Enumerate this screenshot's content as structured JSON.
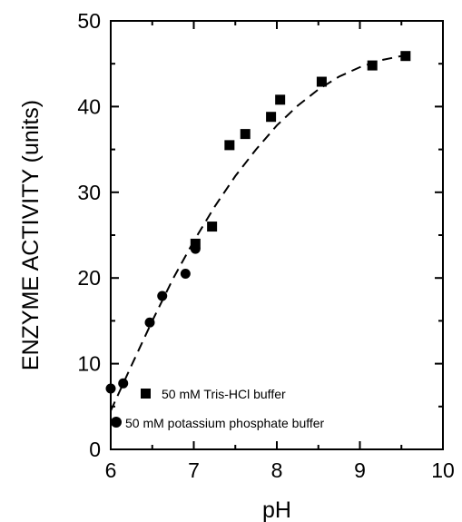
{
  "chart_data": {
    "type": "scatter",
    "xlabel": "pH",
    "ylabel": "ENZYME ACTIVITY (units)",
    "xlim": [
      6,
      10
    ],
    "ylim": [
      0,
      50
    ],
    "xticks": [
      6,
      7,
      8,
      9,
      10
    ],
    "yticks": [
      0,
      10,
      20,
      30,
      40,
      50
    ],
    "grid": false,
    "legend_position": "bottom-left",
    "series": [
      {
        "name": "50 mM Tris-HCl buffer",
        "marker": "square",
        "points": [
          {
            "x": 7.02,
            "y": 24.0
          },
          {
            "x": 7.22,
            "y": 26.0
          },
          {
            "x": 7.43,
            "y": 35.5
          },
          {
            "x": 7.62,
            "y": 36.8
          },
          {
            "x": 7.93,
            "y": 38.8
          },
          {
            "x": 8.04,
            "y": 40.8
          },
          {
            "x": 8.54,
            "y": 42.9
          },
          {
            "x": 9.15,
            "y": 44.8
          },
          {
            "x": 9.55,
            "y": 45.9
          }
        ]
      },
      {
        "name": "50 mM potassium phosphate buffer",
        "marker": "circle",
        "points": [
          {
            "x": 6.0,
            "y": 7.1
          },
          {
            "x": 6.15,
            "y": 7.7
          },
          {
            "x": 6.47,
            "y": 14.8
          },
          {
            "x": 6.62,
            "y": 17.9
          },
          {
            "x": 6.9,
            "y": 20.5
          },
          {
            "x": 7.02,
            "y": 23.4
          }
        ]
      }
    ],
    "fit_curve": {
      "style": "dashed",
      "points": [
        {
          "x": 6.0,
          "y": 4.5
        },
        {
          "x": 6.25,
          "y": 9.8
        },
        {
          "x": 6.5,
          "y": 15.0
        },
        {
          "x": 6.75,
          "y": 19.9
        },
        {
          "x": 7.0,
          "y": 24.3
        },
        {
          "x": 7.25,
          "y": 28.3
        },
        {
          "x": 7.5,
          "y": 31.9
        },
        {
          "x": 7.75,
          "y": 35.0
        },
        {
          "x": 8.0,
          "y": 37.8
        },
        {
          "x": 8.25,
          "y": 40.1
        },
        {
          "x": 8.5,
          "y": 42.0
        },
        {
          "x": 8.75,
          "y": 43.5
        },
        {
          "x": 9.0,
          "y": 44.6
        },
        {
          "x": 9.25,
          "y": 45.4
        },
        {
          "x": 9.5,
          "y": 45.9
        },
        {
          "x": 9.6,
          "y": 46.0
        }
      ]
    }
  }
}
